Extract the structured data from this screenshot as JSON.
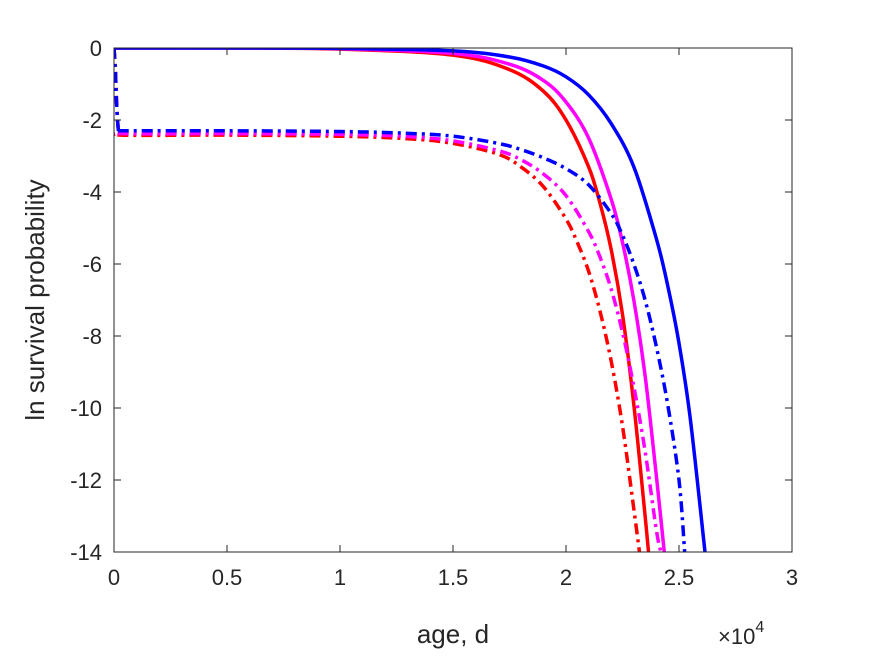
{
  "chart_data": {
    "type": "line",
    "title": "",
    "xlabel": "age, d",
    "ylabel": "ln survival probability",
    "x_multiplier_label": {
      "base": "×10",
      "exponent": "4"
    },
    "xlim": [
      0,
      30000
    ],
    "ylim": [
      -14,
      0
    ],
    "xticks": [
      0,
      5000,
      10000,
      15000,
      20000,
      25000,
      30000
    ],
    "xtick_labels": [
      "0",
      "0.5",
      "1",
      "1.5",
      "2",
      "2.5",
      "3"
    ],
    "yticks": [
      0,
      -2,
      -4,
      -6,
      -8,
      -10,
      -12,
      -14
    ],
    "ytick_labels": [
      "0",
      "-2",
      "-4",
      "-6",
      "-8",
      "-10",
      "-12",
      "-14"
    ],
    "grid": false,
    "series": [
      {
        "color": "#ff0000",
        "style": "solid",
        "x": [
          0,
          5000,
          10000,
          15000,
          17500,
          19000,
          20000,
          21000,
          21500,
          22000,
          22500,
          23000,
          23500,
          23650
        ],
        "y": [
          0,
          0,
          -0.03,
          -0.2,
          -0.6,
          -1.2,
          -2.0,
          -3.3,
          -4.3,
          -5.6,
          -7.4,
          -9.9,
          -13.0,
          -14.0
        ]
      },
      {
        "color": "#ff00ff",
        "style": "solid",
        "x": [
          0,
          5000,
          10000,
          15000,
          17500,
          19000,
          20000,
          21000,
          22000,
          22500,
          23000,
          23500,
          24000,
          24350
        ],
        "y": [
          0,
          0,
          -0.02,
          -0.15,
          -0.45,
          -0.9,
          -1.5,
          -2.5,
          -4.2,
          -5.4,
          -7.0,
          -9.1,
          -11.9,
          -14.0
        ]
      },
      {
        "color": "#0000ff",
        "style": "solid",
        "x": [
          0,
          5000,
          10000,
          15000,
          17500,
          19000,
          20000,
          21000,
          22000,
          23000,
          24000,
          24500,
          25000,
          25500,
          26150
        ],
        "y": [
          0,
          0,
          -0.01,
          -0.08,
          -0.25,
          -0.5,
          -0.8,
          -1.3,
          -2.1,
          -3.3,
          -5.3,
          -6.6,
          -8.2,
          -10.3,
          -14.0
        ]
      },
      {
        "color": "#ff0000",
        "style": "dashdot",
        "x": [
          0,
          60,
          120,
          200,
          300,
          5000,
          10000,
          13000,
          15000,
          17000,
          18000,
          19000,
          20000,
          20500,
          21000,
          21500,
          22000,
          22500,
          23000,
          23250
        ],
        "y": [
          0,
          -0.6,
          -1.6,
          -2.3,
          -2.42,
          -2.42,
          -2.45,
          -2.52,
          -2.65,
          -2.95,
          -3.3,
          -3.85,
          -4.75,
          -5.4,
          -6.2,
          -7.3,
          -8.7,
          -10.5,
          -12.8,
          -14.0
        ]
      },
      {
        "color": "#ff00ff",
        "style": "dashdot",
        "x": [
          0,
          60,
          120,
          200,
          300,
          5000,
          10000,
          13000,
          15000,
          17000,
          18000,
          19000,
          20000,
          21000,
          21500,
          22000,
          22500,
          23000,
          23500,
          24000,
          24200
        ],
        "y": [
          0,
          -0.6,
          -1.6,
          -2.3,
          -2.38,
          -2.38,
          -2.4,
          -2.46,
          -2.58,
          -2.85,
          -3.1,
          -3.5,
          -4.1,
          -5.1,
          -5.8,
          -6.7,
          -7.9,
          -9.4,
          -11.2,
          -13.4,
          -14.0
        ]
      },
      {
        "color": "#0000ff",
        "style": "dashdot",
        "x": [
          0,
          60,
          120,
          200,
          300,
          5000,
          10000,
          13000,
          15000,
          17000,
          18000,
          19000,
          20000,
          21000,
          22000,
          22500,
          23000,
          23500,
          24000,
          24500,
          25000,
          25250
        ],
        "y": [
          0,
          -0.6,
          -1.6,
          -2.3,
          -2.3,
          -2.3,
          -2.32,
          -2.37,
          -2.45,
          -2.65,
          -2.82,
          -3.05,
          -3.35,
          -3.8,
          -4.6,
          -5.2,
          -6.0,
          -7.0,
          -8.3,
          -9.9,
          -12.0,
          -14.0
        ]
      }
    ]
  }
}
